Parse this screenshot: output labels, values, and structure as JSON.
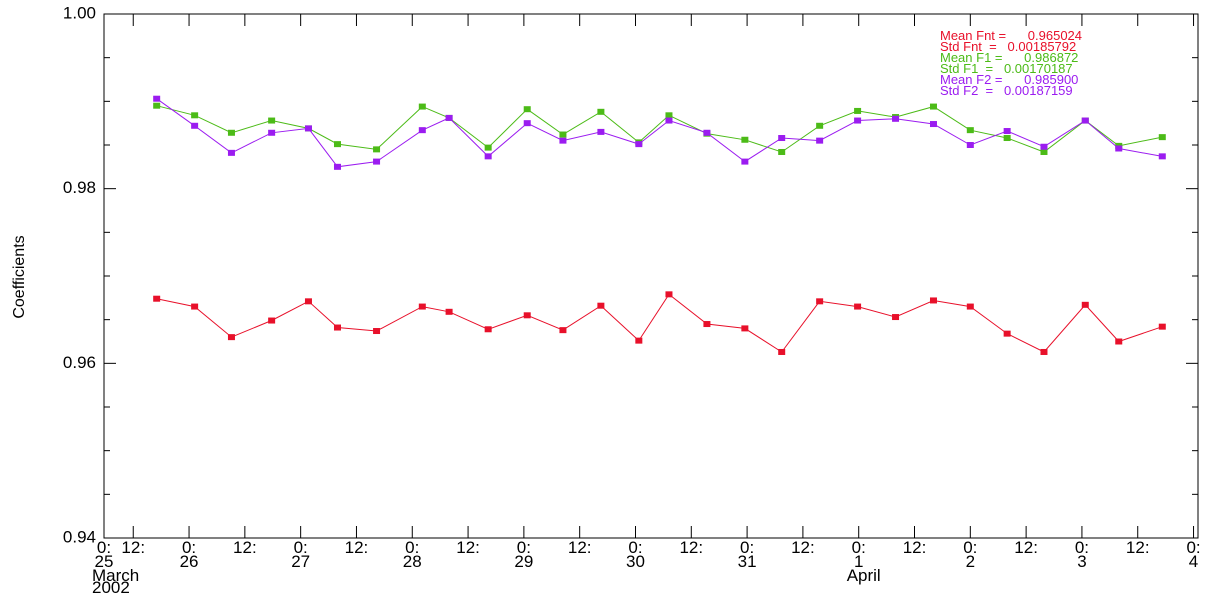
{
  "chart_data": {
    "type": "line",
    "y_label": "Coefficients",
    "xlim": [
      0.238,
      10.04
    ],
    "xticks": [
      {
        "value": 0.238,
        "label": "0:"
      },
      {
        "value": 0.5,
        "label": "12:"
      },
      {
        "value": 1,
        "label": "0:"
      },
      {
        "value": 1.5,
        "label": "12:"
      },
      {
        "value": 2,
        "label": "0:"
      },
      {
        "value": 2.5,
        "label": "12:"
      },
      {
        "value": 3,
        "label": "0:"
      },
      {
        "value": 3.5,
        "label": "12:"
      },
      {
        "value": 4,
        "label": "0:"
      },
      {
        "value": 4.5,
        "label": "12:"
      },
      {
        "value": 5,
        "label": "0:"
      },
      {
        "value": 5.5,
        "label": "12:"
      },
      {
        "value": 6,
        "label": "0:"
      },
      {
        "value": 6.5,
        "label": "12:"
      },
      {
        "value": 7,
        "label": "0:"
      },
      {
        "value": 7.5,
        "label": "12:"
      },
      {
        "value": 8,
        "label": "0:"
      },
      {
        "value": 8.5,
        "label": "12:"
      },
      {
        "value": 9,
        "label": "0:"
      },
      {
        "value": 9.5,
        "label": "12:"
      },
      {
        "value": 10,
        "label": "0:"
      }
    ],
    "x_day_labels": [
      {
        "value": 0.238,
        "label": "25"
      },
      {
        "value": 1,
        "label": "26"
      },
      {
        "value": 2,
        "label": "27"
      },
      {
        "value": 3,
        "label": "28"
      },
      {
        "value": 4,
        "label": "29"
      },
      {
        "value": 5,
        "label": "30"
      },
      {
        "value": 6,
        "label": "31"
      },
      {
        "value": 7,
        "label": "1"
      },
      {
        "value": 8,
        "label": "2"
      },
      {
        "value": 9,
        "label": "3"
      },
      {
        "value": 10,
        "label": "4"
      }
    ],
    "x_month_labels": [
      {
        "value": 0.238,
        "label": "March",
        "year": "2002"
      },
      {
        "value": 7,
        "label": "April"
      }
    ],
    "ylim": [
      0.94,
      1.0
    ],
    "yticks": [
      {
        "value": 0.94,
        "label": "0.94"
      },
      {
        "value": 0.96,
        "label": "0.96"
      },
      {
        "value": 0.98,
        "label": "0.98"
      },
      {
        "value": 1.0,
        "label": "1.00"
      }
    ],
    "yminor_ticks": [
      0.945,
      0.95,
      0.955,
      0.965,
      0.97,
      0.975,
      0.985,
      0.99,
      0.995
    ],
    "x": [
      0.71,
      1.05,
      1.38,
      1.74,
      2.07,
      2.33,
      2.68,
      3.09,
      3.33,
      3.68,
      4.03,
      4.35,
      4.69,
      5.03,
      5.3,
      5.64,
      5.98,
      6.31,
      6.65,
      6.99,
      7.33,
      7.67,
      8.0,
      8.33,
      8.66,
      9.03,
      9.33,
      9.72
    ],
    "series": [
      {
        "name": "Fnt",
        "color": "#e8102a",
        "values": [
          0.9674,
          0.9665,
          0.963,
          0.9649,
          0.9671,
          0.9641,
          0.9637,
          0.9665,
          0.9659,
          0.9639,
          0.9655,
          0.9638,
          0.9666,
          0.9626,
          0.9679,
          0.9645,
          0.964,
          0.9613,
          0.9671,
          0.9665,
          0.9653,
          0.9672,
          0.9665,
          0.9634,
          0.9613,
          0.9667,
          0.9625,
          0.9642
        ]
      },
      {
        "name": "F1",
        "color": "#4cbb17",
        "values": [
          0.9895,
          0.9884,
          0.9864,
          0.9878,
          0.9869,
          0.9851,
          0.9845,
          0.9894,
          0.9881,
          0.9847,
          0.9891,
          0.9862,
          0.9888,
          0.9853,
          0.9884,
          0.9863,
          0.9856,
          0.9842,
          0.9872,
          0.9889,
          0.9882,
          0.9894,
          0.9867,
          0.9858,
          0.9842,
          0.9878,
          0.9849,
          0.9859
        ]
      },
      {
        "name": "F2",
        "color": "#9b1cf0",
        "values": [
          0.9903,
          0.9872,
          0.9841,
          0.9864,
          0.9869,
          0.9825,
          0.9831,
          0.9867,
          0.9881,
          0.9837,
          0.9875,
          0.9855,
          0.9865,
          0.9851,
          0.9878,
          0.9864,
          0.9831,
          0.9858,
          0.9855,
          0.9878,
          0.988,
          0.9874,
          0.985,
          0.9866,
          0.9848,
          0.9878,
          0.9846,
          0.9837
        ]
      }
    ],
    "annotations": [
      {
        "text": "Mean Fnt =      0.965024",
        "color": "#e8102a"
      },
      {
        "text": "Std Fnt  =   0.00185792",
        "color": "#e8102a"
      },
      {
        "text": "Mean F1 =      0.986872",
        "color": "#4cbb17"
      },
      {
        "text": "Std F1  =   0.00170187",
        "color": "#4cbb17"
      },
      {
        "text": "Mean F2 =      0.985900",
        "color": "#9b1cf0"
      },
      {
        "text": "Std F2  =   0.00187159",
        "color": "#9b1cf0"
      }
    ]
  }
}
